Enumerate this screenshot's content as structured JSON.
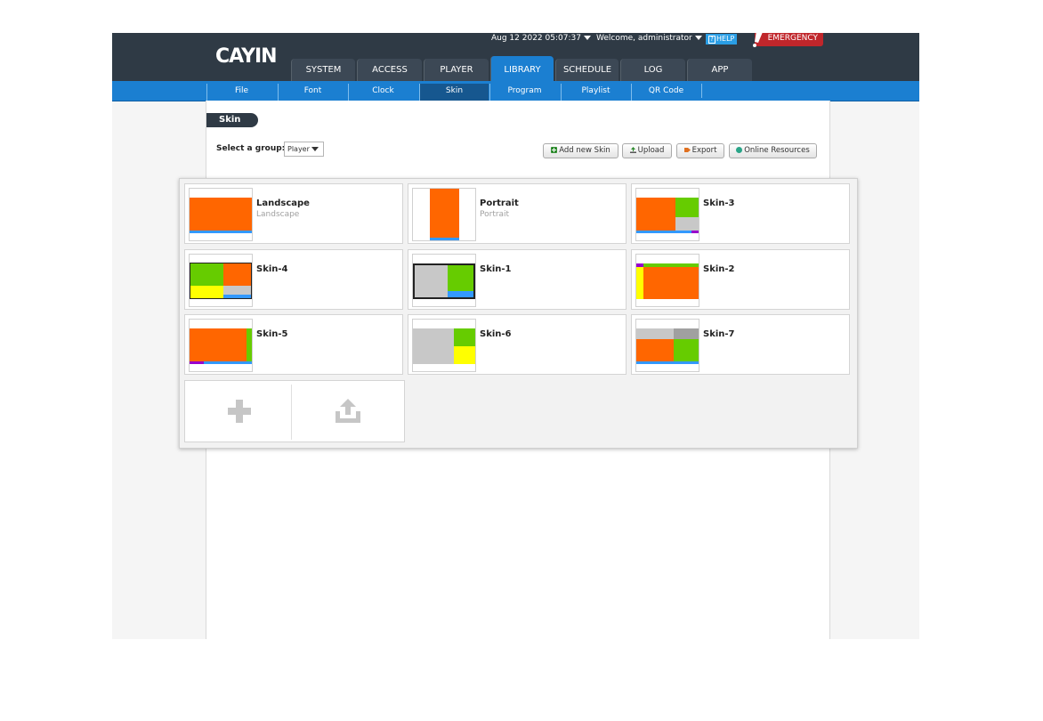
{
  "header": {
    "logo": "CAYIN",
    "datetime": "Aug 12 2022 05:07:37",
    "welcome": "Welcome, administrator",
    "help": "HELP",
    "emergency": "EMERGENCY"
  },
  "main_tabs": [
    {
      "label": "SYSTEM"
    },
    {
      "label": "ACCESS"
    },
    {
      "label": "PLAYER"
    },
    {
      "label": "LIBRARY"
    },
    {
      "label": "SCHEDULE"
    },
    {
      "label": "LOG"
    },
    {
      "label": "APP"
    }
  ],
  "sub_nav": [
    {
      "label": "File"
    },
    {
      "label": "Font"
    },
    {
      "label": "Clock"
    },
    {
      "label": "Skin"
    },
    {
      "label": "Program"
    },
    {
      "label": "Playlist"
    },
    {
      "label": "QR Code"
    }
  ],
  "page": {
    "title": "Skin",
    "group_label": "Select a group:",
    "group_value": "Player"
  },
  "toolbar": {
    "add_new_skin": "Add new Skin",
    "upload": "Upload",
    "export": "Export",
    "online_resources": "Online Resources"
  },
  "skins": [
    {
      "name": "Landscape",
      "subtitle": "Landscape"
    },
    {
      "name": "Portrait",
      "subtitle": "Portrait"
    },
    {
      "name": "Skin-3",
      "subtitle": ""
    },
    {
      "name": "Skin-4",
      "subtitle": ""
    },
    {
      "name": "Skin-1",
      "subtitle": ""
    },
    {
      "name": "Skin-2",
      "subtitle": ""
    },
    {
      "name": "Skin-5",
      "subtitle": ""
    },
    {
      "name": "Skin-6",
      "subtitle": ""
    },
    {
      "name": "Skin-7",
      "subtitle": ""
    }
  ],
  "icons": {
    "add": "plus-icon",
    "upload": "upload-icon"
  },
  "colors": {
    "header_bg": "#2f3a45",
    "accent_blue": "#1b7fd1",
    "emergency_red": "#c0262b",
    "zone_orange": "#ff6600",
    "zone_green": "#66cc00",
    "zone_yellow": "#ffff00",
    "zone_gray": "#c8c8c8",
    "zone_blue": "#3399ff",
    "zone_purple": "#9900cc"
  }
}
